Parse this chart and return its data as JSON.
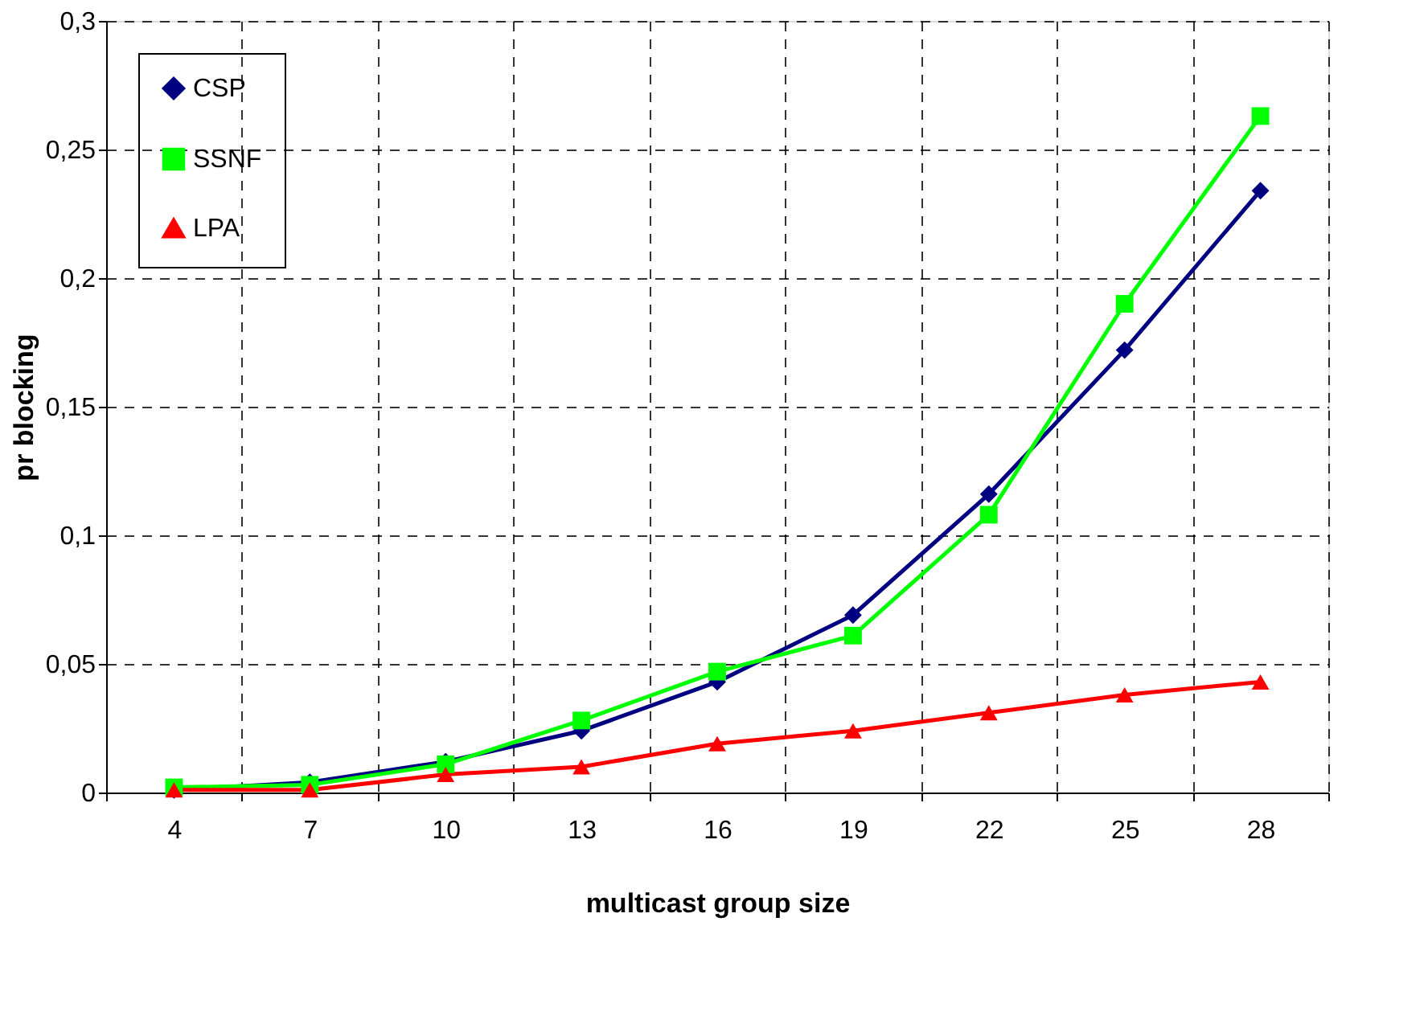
{
  "chart_data": {
    "type": "line",
    "xlabel": "multicast group size",
    "ylabel": "pr blocking",
    "categories": [
      "4",
      "7",
      "10",
      "13",
      "16",
      "19",
      "22",
      "25",
      "28"
    ],
    "ylim": [
      0,
      0.3
    ],
    "yticks": [
      {
        "value": 0,
        "label": "0"
      },
      {
        "value": 0.05,
        "label": "0,05"
      },
      {
        "value": 0.1,
        "label": "0,1"
      },
      {
        "value": 0.15,
        "label": "0,15"
      },
      {
        "value": 0.2,
        "label": "0,2"
      },
      {
        "value": 0.25,
        "label": "0,25"
      },
      {
        "value": 0.3,
        "label": "0,3"
      }
    ],
    "grid": true,
    "legend": "top left",
    "series": [
      {
        "name": "CSP",
        "color": "#000080",
        "marker": "diamond",
        "values": [
          0.001,
          0.004,
          0.012,
          0.024,
          0.043,
          0.069,
          0.116,
          0.172,
          0.234
        ]
      },
      {
        "name": "SSNF",
        "color": "#00ff00",
        "marker": "square",
        "values": [
          0.002,
          0.003,
          0.011,
          0.028,
          0.047,
          0.061,
          0.108,
          0.19,
          0.263
        ]
      },
      {
        "name": "LPA",
        "color": "#ff0000",
        "marker": "triangle",
        "values": [
          0.001,
          0.001,
          0.007,
          0.01,
          0.019,
          0.024,
          0.031,
          0.038,
          0.043
        ]
      }
    ]
  }
}
